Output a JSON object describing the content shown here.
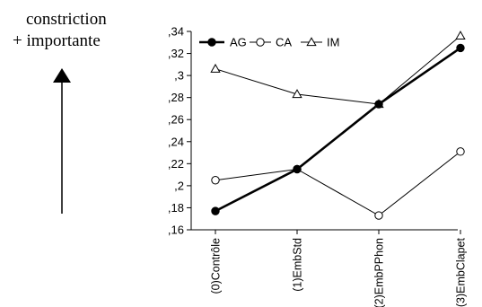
{
  "annotation": {
    "line1": "constriction",
    "line2": "+ importante"
  },
  "chart_data": {
    "type": "line",
    "categories": [
      "(0)Contrôle",
      "(1)EmbStd",
      "(2)EmbPPhon",
      "(3)EmbClapet"
    ],
    "y_tick_labels": [
      ",16",
      ",18",
      ",2",
      ",22",
      ",24",
      ",26",
      ",28",
      ",3",
      ",32",
      ",34"
    ],
    "y_ticks": [
      0.16,
      0.18,
      0.2,
      0.22,
      0.24,
      0.26,
      0.28,
      0.3,
      0.32,
      0.34
    ],
    "ylim": [
      0.16,
      0.34
    ],
    "grid": false,
    "legend_position": "top",
    "series": [
      {
        "name": "AG",
        "marker": "filled-circle",
        "color": "#000000",
        "values": [
          0.177,
          0.215,
          0.274,
          0.325
        ]
      },
      {
        "name": "CA",
        "marker": "open-circle",
        "color": "#000000",
        "values": [
          0.205,
          0.215,
          0.173,
          0.231
        ]
      },
      {
        "name": "IM",
        "marker": "open-triangle",
        "color": "#000000",
        "values": [
          0.306,
          0.283,
          0.274,
          0.336
        ]
      }
    ]
  }
}
